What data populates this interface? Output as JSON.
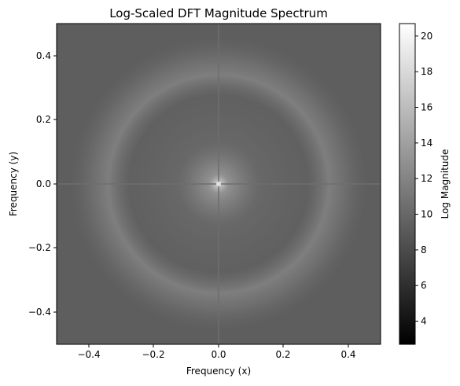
{
  "chart_data": {
    "type": "heatmap",
    "title": "Log-Scaled DFT Magnitude Spectrum",
    "xlabel": "Frequency (x)",
    "ylabel": "Frequency (y)",
    "xlim": [
      -0.5,
      0.5
    ],
    "ylim": [
      -0.5,
      0.5
    ],
    "xticks": [
      -0.4,
      -0.2,
      0.0,
      0.2,
      0.4
    ],
    "xtick_labels": [
      "−0.4",
      "−0.2",
      "0.0",
      "0.2",
      "0.4"
    ],
    "yticks": [
      -0.4,
      -0.2,
      0.0,
      0.2,
      0.4
    ],
    "ytick_labels": [
      "−0.4",
      "−0.2",
      "0.0",
      "0.2",
      "0.4"
    ],
    "colormap": "gray",
    "colorbar": {
      "label": "Log Magnitude",
      "vmin": 2.7,
      "vmax": 20.7,
      "ticks": [
        4,
        6,
        8,
        10,
        12,
        14,
        16,
        18,
        20
      ],
      "tick_labels": [
        "4",
        "6",
        "8",
        "10",
        "12",
        "14",
        "16",
        "18",
        "20"
      ]
    },
    "field": {
      "background": 8.8,
      "peak_center": [
        0.0,
        0.0
      ],
      "peak_value": 13.5,
      "ring_radius": 0.34,
      "ring_value": 10.4
    }
  }
}
